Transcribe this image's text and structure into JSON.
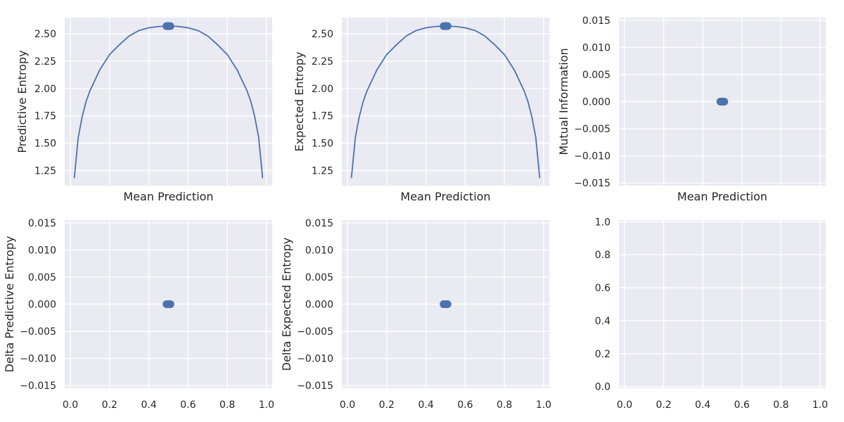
{
  "chart_data": [
    {
      "type": "line",
      "xlabel": "Mean Prediction",
      "ylabel": "Predictive Entropy",
      "xlim": [
        -0.0288,
        1.0288
      ],
      "ylim": [
        1.111,
        2.648
      ],
      "x_tick_labels_shown": false,
      "xticks": [
        0.0,
        0.2,
        0.4,
        0.6,
        0.8,
        1.0
      ],
      "yticks": [
        1.25,
        1.5,
        1.75,
        2.0,
        2.25,
        2.5
      ],
      "ytick_labels": [
        "1.25",
        "1.50",
        "1.75",
        "2.00",
        "2.25",
        "2.50"
      ],
      "grid": true,
      "line_curve": {
        "description": "entropy-shaped arc",
        "x": [
          0.02,
          0.04,
          0.06,
          0.08,
          0.1,
          0.15,
          0.2,
          0.25,
          0.3,
          0.35,
          0.4,
          0.45,
          0.5,
          0.55,
          0.6,
          0.65,
          0.7,
          0.75,
          0.8,
          0.85,
          0.9,
          0.92,
          0.94,
          0.96,
          0.98
        ],
        "y": [
          1.18,
          1.55,
          1.74,
          1.88,
          1.98,
          2.17,
          2.31,
          2.4,
          2.48,
          2.53,
          2.555,
          2.567,
          2.57,
          2.567,
          2.555,
          2.53,
          2.48,
          2.4,
          2.31,
          2.17,
          1.98,
          1.88,
          1.74,
          1.55,
          1.18
        ]
      },
      "scatter_points": {
        "x": [
          0.49,
          0.495,
          0.5,
          0.505,
          0.51
        ],
        "y": [
          2.57,
          2.57,
          2.57,
          2.57,
          2.57
        ]
      },
      "colors": {
        "line": "#4c72b0",
        "points": "#4c72b0"
      }
    },
    {
      "type": "line",
      "xlabel": "Mean Prediction",
      "ylabel": "Expected Entropy",
      "xlim": [
        -0.0288,
        1.0288
      ],
      "ylim": [
        1.111,
        2.648
      ],
      "x_tick_labels_shown": false,
      "xticks": [
        0.0,
        0.2,
        0.4,
        0.6,
        0.8,
        1.0
      ],
      "yticks": [
        1.25,
        1.5,
        1.75,
        2.0,
        2.25,
        2.5
      ],
      "ytick_labels": [
        "1.25",
        "1.50",
        "1.75",
        "2.00",
        "2.25",
        "2.50"
      ],
      "grid": true,
      "line_curve": {
        "description": "entropy-shaped arc",
        "x": [
          0.02,
          0.04,
          0.06,
          0.08,
          0.1,
          0.15,
          0.2,
          0.25,
          0.3,
          0.35,
          0.4,
          0.45,
          0.5,
          0.55,
          0.6,
          0.65,
          0.7,
          0.75,
          0.8,
          0.85,
          0.9,
          0.92,
          0.94,
          0.96,
          0.98
        ],
        "y": [
          1.18,
          1.55,
          1.74,
          1.88,
          1.98,
          2.17,
          2.31,
          2.4,
          2.48,
          2.53,
          2.555,
          2.567,
          2.57,
          2.567,
          2.555,
          2.53,
          2.48,
          2.4,
          2.31,
          2.17,
          1.98,
          1.88,
          1.74,
          1.55,
          1.18
        ]
      },
      "scatter_points": {
        "x": [
          0.49,
          0.495,
          0.5,
          0.505,
          0.51
        ],
        "y": [
          2.57,
          2.57,
          2.57,
          2.57,
          2.57
        ]
      },
      "colors": {
        "line": "#4c72b0",
        "points": "#4c72b0"
      }
    },
    {
      "type": "scatter",
      "xlabel": "Mean Prediction",
      "ylabel": "Mutual Information",
      "xlim": [
        -0.0288,
        1.0288
      ],
      "ylim": [
        -0.0155,
        0.0155
      ],
      "x_tick_labels_shown": false,
      "xticks": [
        0.0,
        0.2,
        0.4,
        0.6,
        0.8,
        1.0
      ],
      "yticks": [
        -0.015,
        -0.01,
        -0.005,
        0.0,
        0.005,
        0.01,
        0.015
      ],
      "ytick_labels": [
        "−0.015",
        "−0.010",
        "−0.005",
        "0.000",
        "0.005",
        "0.010",
        "0.015"
      ],
      "grid": true,
      "scatter_points": {
        "x": [
          0.49,
          0.495,
          0.5,
          0.505,
          0.51
        ],
        "y": [
          0,
          0,
          0,
          0,
          0
        ]
      },
      "colors": {
        "points": "#4c72b0"
      }
    },
    {
      "type": "scatter",
      "xlabel": "",
      "ylabel": "Delta Predictive Entropy",
      "xlim": [
        -0.0288,
        1.0288
      ],
      "ylim": [
        -0.0155,
        0.0155
      ],
      "x_tick_labels_shown": true,
      "xticks": [
        0.0,
        0.2,
        0.4,
        0.6,
        0.8,
        1.0
      ],
      "xtick_labels": [
        "0.0",
        "0.2",
        "0.4",
        "0.6",
        "0.8",
        "1.0"
      ],
      "yticks": [
        -0.015,
        -0.01,
        -0.005,
        0.0,
        0.005,
        0.01,
        0.015
      ],
      "ytick_labels": [
        "−0.015",
        "−0.010",
        "−0.005",
        "0.000",
        "0.005",
        "0.010",
        "0.015"
      ],
      "grid": true,
      "scatter_points": {
        "x": [
          0.49,
          0.495,
          0.5,
          0.505,
          0.51
        ],
        "y": [
          0,
          0,
          0,
          0,
          0
        ]
      },
      "colors": {
        "points": "#4c72b0"
      }
    },
    {
      "type": "scatter",
      "xlabel": "",
      "ylabel": "Delta Expected Entropy",
      "xlim": [
        -0.0288,
        1.0288
      ],
      "ylim": [
        -0.0155,
        0.0155
      ],
      "x_tick_labels_shown": true,
      "xticks": [
        0.0,
        0.2,
        0.4,
        0.6,
        0.8,
        1.0
      ],
      "xtick_labels": [
        "0.0",
        "0.2",
        "0.4",
        "0.6",
        "0.8",
        "1.0"
      ],
      "yticks": [
        -0.015,
        -0.01,
        -0.005,
        0.0,
        0.005,
        0.01,
        0.015
      ],
      "ytick_labels": [
        "−0.015",
        "−0.010",
        "−0.005",
        "0.000",
        "0.005",
        "0.010",
        "0.015"
      ],
      "grid": true,
      "scatter_points": {
        "x": [
          0.49,
          0.495,
          0.5,
          0.505,
          0.51
        ],
        "y": [
          0,
          0,
          0,
          0,
          0
        ]
      },
      "colors": {
        "points": "#4c72b0"
      }
    },
    {
      "type": "scatter",
      "xlabel": "",
      "ylabel": "",
      "xlim": [
        -0.0288,
        1.0288
      ],
      "ylim": [
        -0.01,
        1.01
      ],
      "x_tick_labels_shown": true,
      "xticks": [
        0.0,
        0.2,
        0.4,
        0.6,
        0.8,
        1.0
      ],
      "xtick_labels": [
        "0.0",
        "0.2",
        "0.4",
        "0.6",
        "0.8",
        "1.0"
      ],
      "yticks": [
        0.0,
        0.2,
        0.4,
        0.6,
        0.8,
        1.0
      ],
      "ytick_labels": [
        "0.0",
        "0.2",
        "0.4",
        "0.6",
        "0.8",
        "1.0"
      ],
      "grid": true,
      "scatter_points": {
        "x": [],
        "y": []
      },
      "colors": {}
    }
  ],
  "style": {
    "axes_facecolor": "#eaeaf2",
    "grid_color": "#ffffff"
  }
}
